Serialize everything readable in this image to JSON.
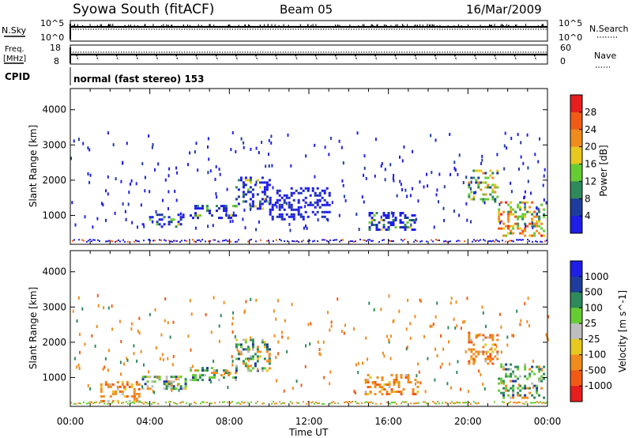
{
  "header": {
    "site": "Syowa South (fitACF)",
    "beam": "Beam 05",
    "date": "16/Mar/2009"
  },
  "summary": {
    "nsky_label": "N.Sky",
    "nsky_ticks": [
      "10^5",
      "10^0"
    ],
    "nsearch_label": "N.Search",
    "nsearch_ticks": [
      "10^5",
      "10^0"
    ],
    "freq_label_1": "Freq.",
    "freq_label_2": "[MHz]",
    "freq_ticks": [
      "18",
      "8"
    ],
    "nave_label": "Nave",
    "nave_ticks": [
      "60",
      "0"
    ],
    "cpid_label": "CPID",
    "cpid_text": "normal (fast stereo) 153"
  },
  "colors": {
    "power": [
      "#1e1ee6",
      "#1e3c9c",
      "#2e8a5a",
      "#66cc33",
      "#e6c81e",
      "#f08c1e",
      "#f05a14",
      "#e61e1e"
    ],
    "velocity": [
      "#e61e1e",
      "#f05a14",
      "#f08c1e",
      "#e6c81e",
      "#bebebe",
      "#66cc33",
      "#2e8a5a",
      "#1e3c9c",
      "#1e1ee6"
    ]
  },
  "chart_data": [
    {
      "type": "heatmap",
      "panel": "power",
      "xlabel": "Time UT",
      "ylabel": "Slant Range [km]",
      "x_ticks": [
        "00:00",
        "04:00",
        "08:00",
        "12:00",
        "16:00",
        "20:00",
        "00:00"
      ],
      "y_ticks": [
        "1000",
        "2000",
        "3000",
        "4000"
      ],
      "ylim": [
        180,
        4600
      ],
      "xlim_hours": [
        0,
        24
      ],
      "colorbar_label": "Power [dB]",
      "colorbar_ticks": [
        "4",
        "8",
        "12",
        "16",
        "20",
        "24",
        "28"
      ],
      "clim": [
        0,
        32
      ],
      "echo_regions": [
        {
          "t": [
            3.6,
            5.8
          ],
          "r": [
            700,
            1050
          ],
          "level": "low-mid"
        },
        {
          "t": [
            6.0,
            8.3
          ],
          "r": [
            900,
            1300
          ],
          "level": "low-mid"
        },
        {
          "t": [
            8.3,
            10.0
          ],
          "r": [
            1200,
            2100
          ],
          "level": "low-mid"
        },
        {
          "t": [
            10.0,
            13.0
          ],
          "r": [
            900,
            1800
          ],
          "level": "low"
        },
        {
          "t": [
            15.0,
            17.3
          ],
          "r": [
            600,
            1100
          ],
          "level": "low-mid"
        },
        {
          "t": [
            20.0,
            21.5
          ],
          "r": [
            1400,
            2300
          ],
          "level": "mid-high"
        },
        {
          "t": [
            21.5,
            23.8
          ],
          "r": [
            450,
            1400
          ],
          "level": "high"
        }
      ]
    },
    {
      "type": "heatmap",
      "panel": "velocity",
      "xlabel": "Time UT",
      "ylabel": "Slant Range [km]",
      "x_ticks": [
        "00:00",
        "04:00",
        "08:00",
        "12:00",
        "16:00",
        "20:00",
        "00:00"
      ],
      "y_ticks": [
        "1000",
        "2000",
        "3000",
        "4000"
      ],
      "ylim": [
        180,
        4600
      ],
      "xlim_hours": [
        0,
        24
      ],
      "colorbar_label": "Velocity [m s^-1]",
      "colorbar_ticks": [
        "1000",
        "500",
        "100",
        "25",
        "-25",
        "-100",
        "-500",
        "-1000"
      ],
      "echo_regions": [
        {
          "t": [
            1.5,
            3.5
          ],
          "r": [
            300,
            900
          ],
          "level": "away"
        },
        {
          "t": [
            3.6,
            5.8
          ],
          "r": [
            700,
            1050
          ],
          "level": "mixed"
        },
        {
          "t": [
            6.0,
            8.3
          ],
          "r": [
            900,
            1300
          ],
          "level": "toward"
        },
        {
          "t": [
            8.3,
            10.0
          ],
          "r": [
            1200,
            2100
          ],
          "level": "mixed"
        },
        {
          "t": [
            14.8,
            17.5
          ],
          "r": [
            500,
            1100
          ],
          "level": "away"
        },
        {
          "t": [
            20.0,
            21.5
          ],
          "r": [
            1400,
            2300
          ],
          "level": "away"
        },
        {
          "t": [
            21.5,
            23.8
          ],
          "r": [
            450,
            1400
          ],
          "level": "toward"
        }
      ]
    }
  ]
}
